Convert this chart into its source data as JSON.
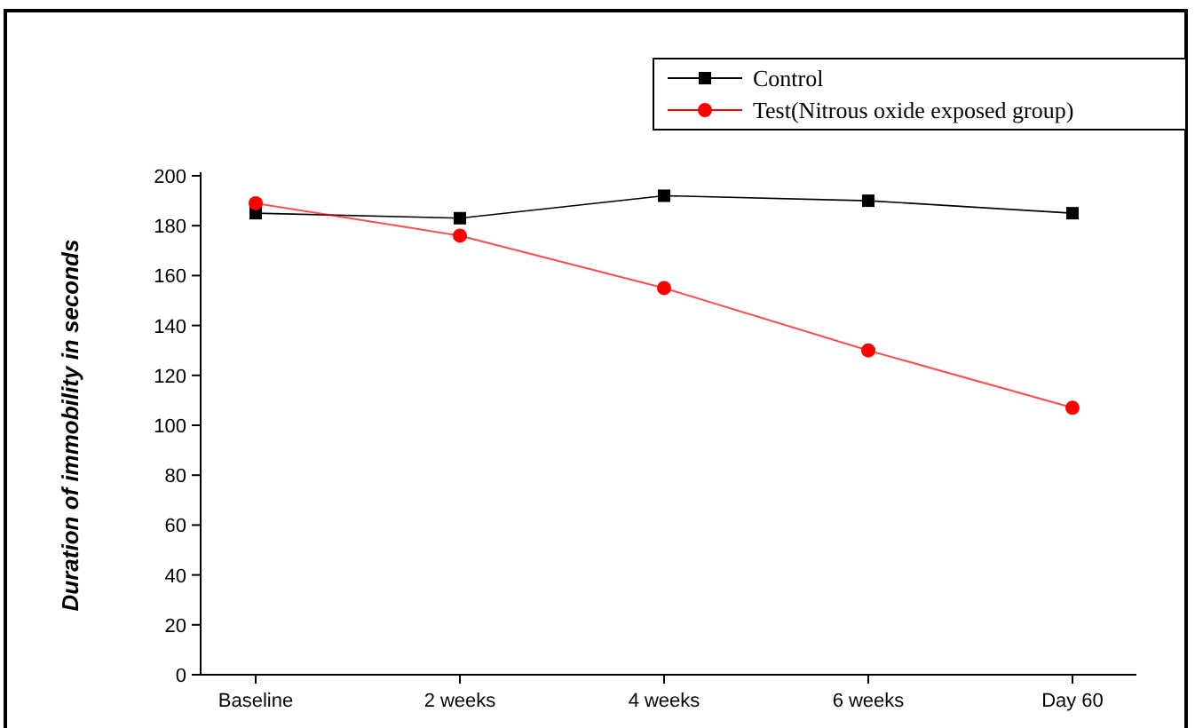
{
  "chart_data": {
    "type": "line",
    "ylabel": "Duration of immobility in seconds",
    "categories": [
      "Baseline",
      "2 weeks",
      "4 weeks",
      "6 weeks",
      "Day 60"
    ],
    "series": [
      {
        "name": "Control",
        "color": "#000000",
        "marker": "square",
        "values": [
          185,
          183,
          192,
          190,
          185
        ]
      },
      {
        "name": "Test(Nitrous oxide  exposed group)",
        "color": "#ff0000",
        "marker": "circle",
        "values": [
          189,
          176,
          155,
          130,
          107
        ]
      }
    ],
    "ylim": [
      0,
      200
    ],
    "yticks": [
      0,
      20,
      40,
      60,
      80,
      100,
      120,
      140,
      160,
      180,
      200
    ],
    "grid": false,
    "legend": "top right"
  }
}
